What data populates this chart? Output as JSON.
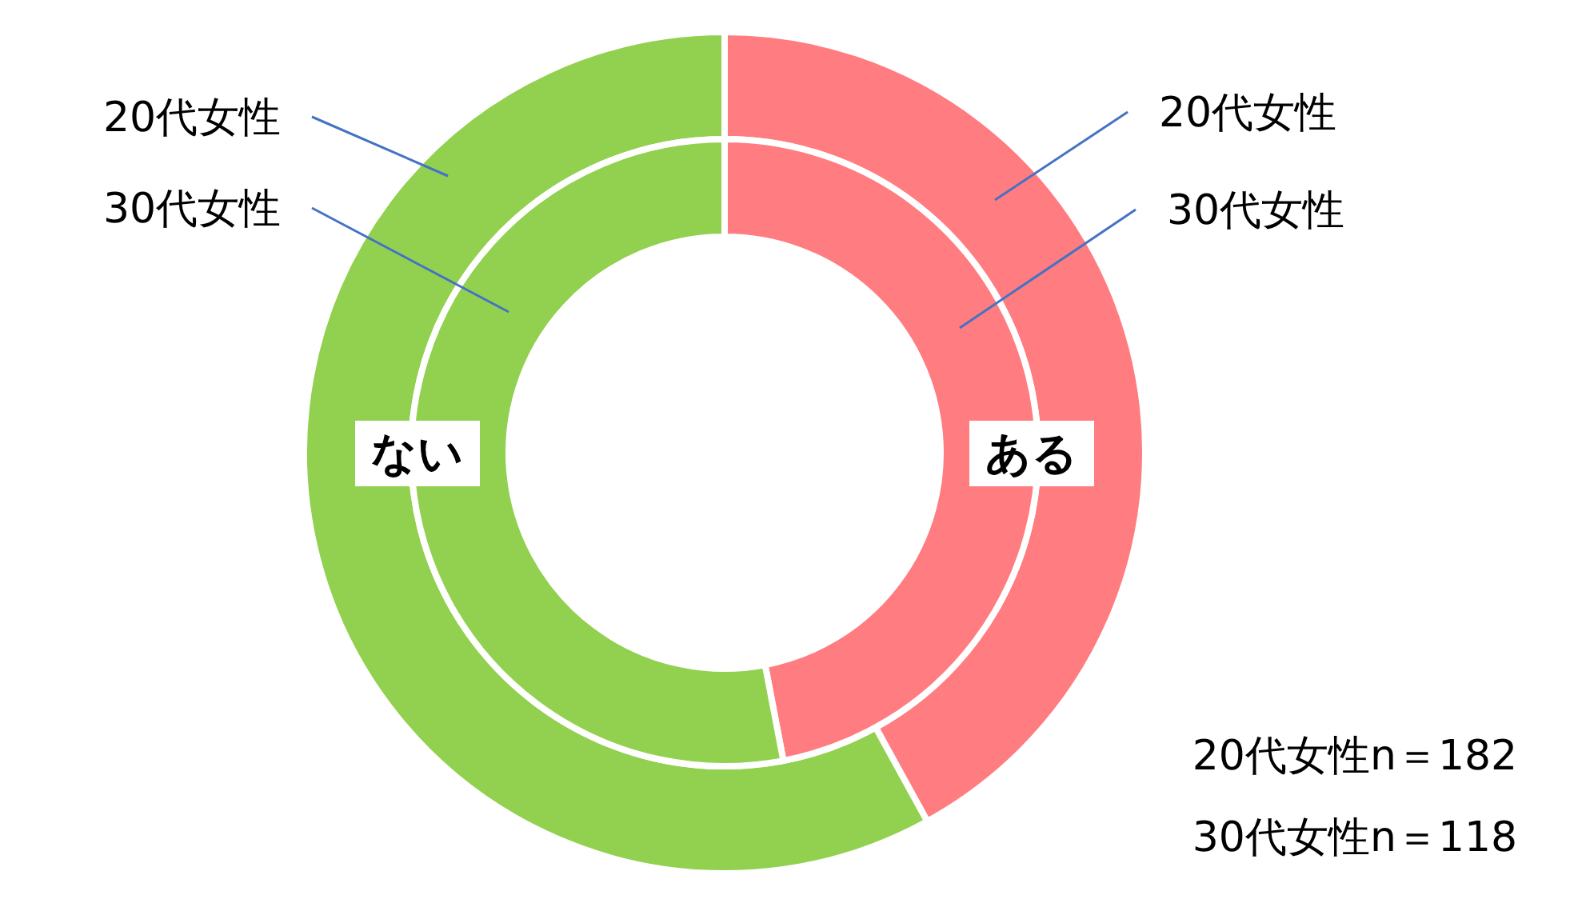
{
  "chart_data": {
    "type": "donut",
    "categories": [
      "ある",
      "ない"
    ],
    "colors": [
      "#ff7c80",
      "#92d050"
    ],
    "series": [
      {
        "name": "20代女性",
        "values": [
          42,
          58
        ]
      },
      {
        "name": "30代女性",
        "values": [
          47,
          53
        ]
      }
    ],
    "annotations": [
      "20代女性n＝182",
      "30代女性n＝118"
    ]
  }
}
